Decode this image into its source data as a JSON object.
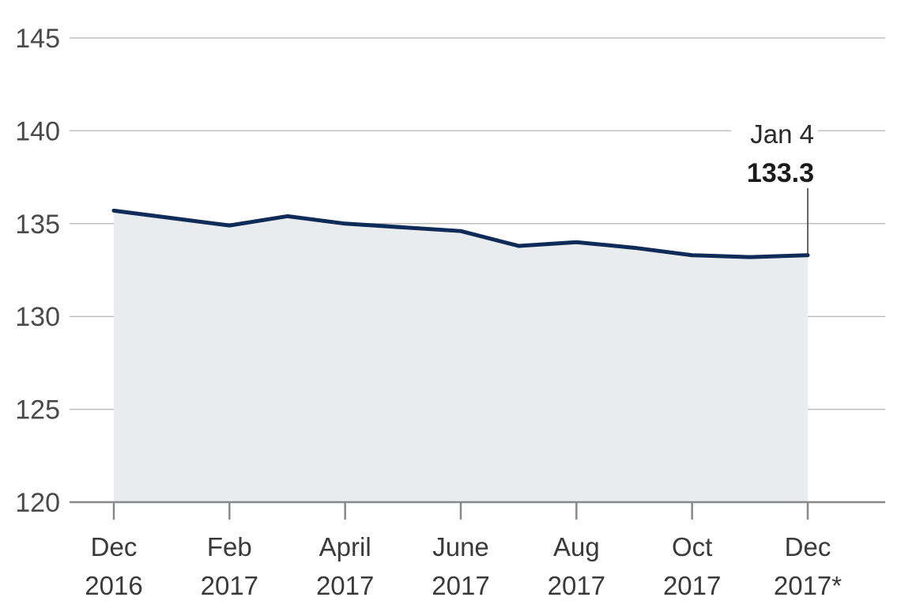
{
  "chart_data": {
    "type": "area",
    "title": "",
    "xlabel": "",
    "ylabel": "",
    "ylim": [
      120,
      145
    ],
    "y_ticks": [
      120,
      125,
      130,
      135,
      140,
      145
    ],
    "grid": true,
    "x_ticks": [
      {
        "line1": "Dec",
        "line2": "2016"
      },
      {
        "line1": "Feb",
        "line2": "2017"
      },
      {
        "line1": "April",
        "line2": "2017"
      },
      {
        "line1": "June",
        "line2": "2017"
      },
      {
        "line1": "Aug",
        "line2": "2017"
      },
      {
        "line1": "Oct",
        "line2": "2017"
      },
      {
        "line1": "Dec",
        "line2": "2017*"
      }
    ],
    "series": [
      {
        "values": [
          135.7,
          135.3,
          134.9,
          135.4,
          135.0,
          134.8,
          134.6,
          133.8,
          134.0,
          133.7,
          133.3,
          133.2,
          133.3
        ]
      }
    ],
    "annotation": {
      "label": "Jan 4",
      "value": "133.3"
    },
    "colors": {
      "line": "#0f2b57",
      "fill": "#e8ecef",
      "grid": "#bfbfbf",
      "axis": "#888888"
    }
  }
}
